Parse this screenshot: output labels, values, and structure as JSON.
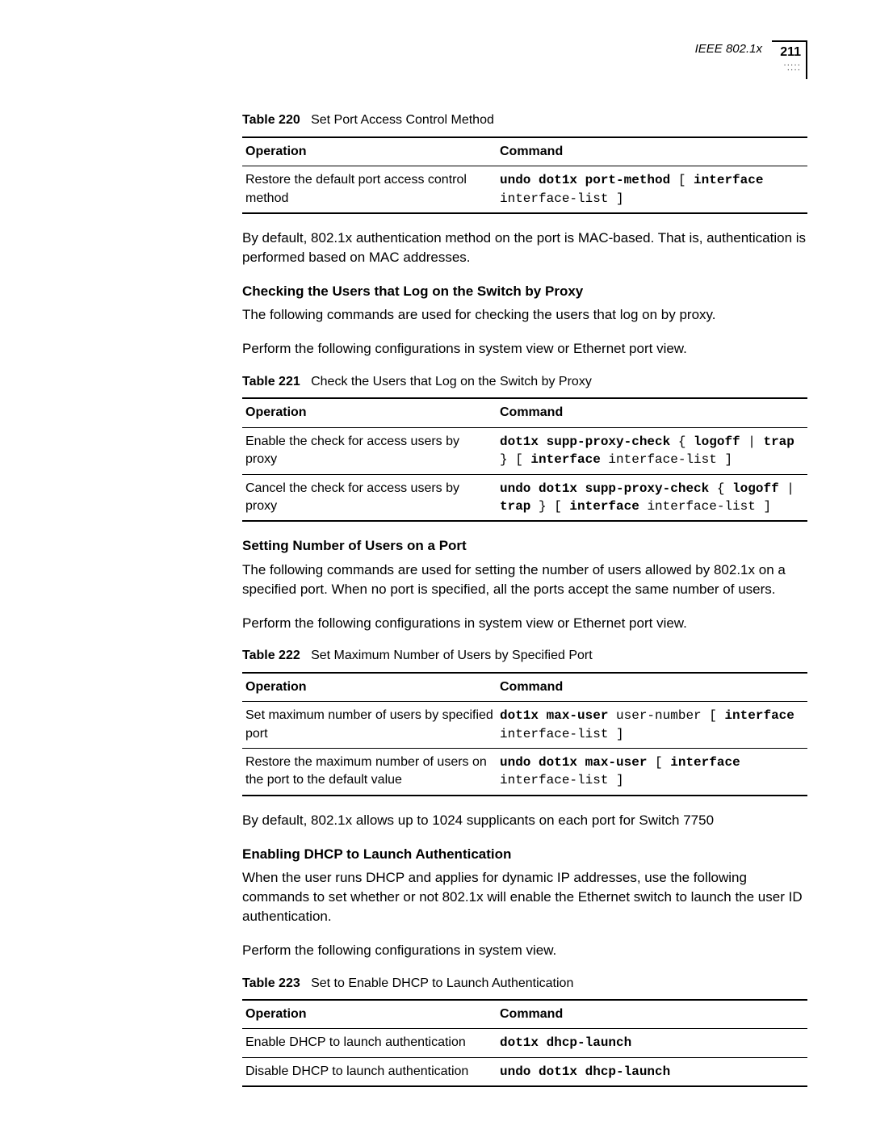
{
  "header": {
    "title": "IEEE 802.1x",
    "page_number": "211"
  },
  "table220": {
    "caption_label": "Table 220",
    "caption_text": "Set Port Access Control Method",
    "columns": [
      "Operation",
      "Command"
    ],
    "rows": [
      {
        "op": "Restore the default port access control method",
        "cmd_html": "<b>undo dot1x port-method</b> [ <b>interface</b> interface-list ]"
      }
    ]
  },
  "para1": "By default, 802.1x authentication method on the port is MAC-based. That is, authentication is performed based on MAC addresses.",
  "section1": {
    "heading": "Checking the Users that Log on the Switch by Proxy",
    "p1": "The following commands are used for checking the users that log on by proxy.",
    "p2": "Perform the following configurations in system view or Ethernet port view."
  },
  "table221": {
    "caption_label": "Table 221",
    "caption_text": "Check the Users that Log on the Switch by Proxy",
    "columns": [
      "Operation",
      "Command"
    ],
    "rows": [
      {
        "op": "Enable the check for access users by proxy",
        "cmd_html": "<b>dot1x supp-proxy-check</b> { <b>logoff</b> | <b>trap</b> } [ <b>interface</b> interface-list ]"
      },
      {
        "op": "Cancel the check for access users by proxy",
        "cmd_html": "<b>undo dot1x supp-proxy-check</b> { <b>logoff</b> | <b>trap</b> } [ <b>interface</b> interface-list ]"
      }
    ]
  },
  "section2": {
    "heading": "Setting Number of Users on a Port",
    "p1": "The following commands are used for setting the number of users allowed by 802.1x on a specified port. When no port is specified, all the ports accept the same number of users.",
    "p2": "Perform the following configurations in system view or Ethernet port view."
  },
  "table222": {
    "caption_label": "Table 222",
    "caption_text": "Set Maximum Number of Users by Specified Port",
    "columns": [
      "Operation",
      "Command"
    ],
    "rows": [
      {
        "op": "Set maximum number of users by specified port",
        "cmd_html": "<b>dot1x max-user</b> user-number [ <b>interface</b> interface-list ]"
      },
      {
        "op": "Restore the maximum number of users on the port to the default value",
        "cmd_html": "<b>undo dot1x max-user</b> [ <b>interface</b> interface-list ]"
      }
    ]
  },
  "para2": "By default, 802.1x allows up to 1024 supplicants on each port for Switch 7750",
  "section3": {
    "heading": "Enabling DHCP to Launch Authentication",
    "p1": "When the user runs DHCP and applies for dynamic IP addresses, use the following commands to set whether or not 802.1x will enable the Ethernet switch to launch the user ID authentication.",
    "p2": "Perform the following configurations in system view."
  },
  "table223": {
    "caption_label": "Table 223",
    "caption_text": "Set to Enable DHCP to Launch Authentication",
    "columns": [
      "Operation",
      "Command"
    ],
    "rows": [
      {
        "op": "Enable DHCP to launch authentication",
        "cmd_html": "<b>dot1x dhcp-launch</b>"
      },
      {
        "op": "Disable DHCP to launch authentication",
        "cmd_html": "<b>undo dot1x dhcp-launch</b>"
      }
    ]
  }
}
